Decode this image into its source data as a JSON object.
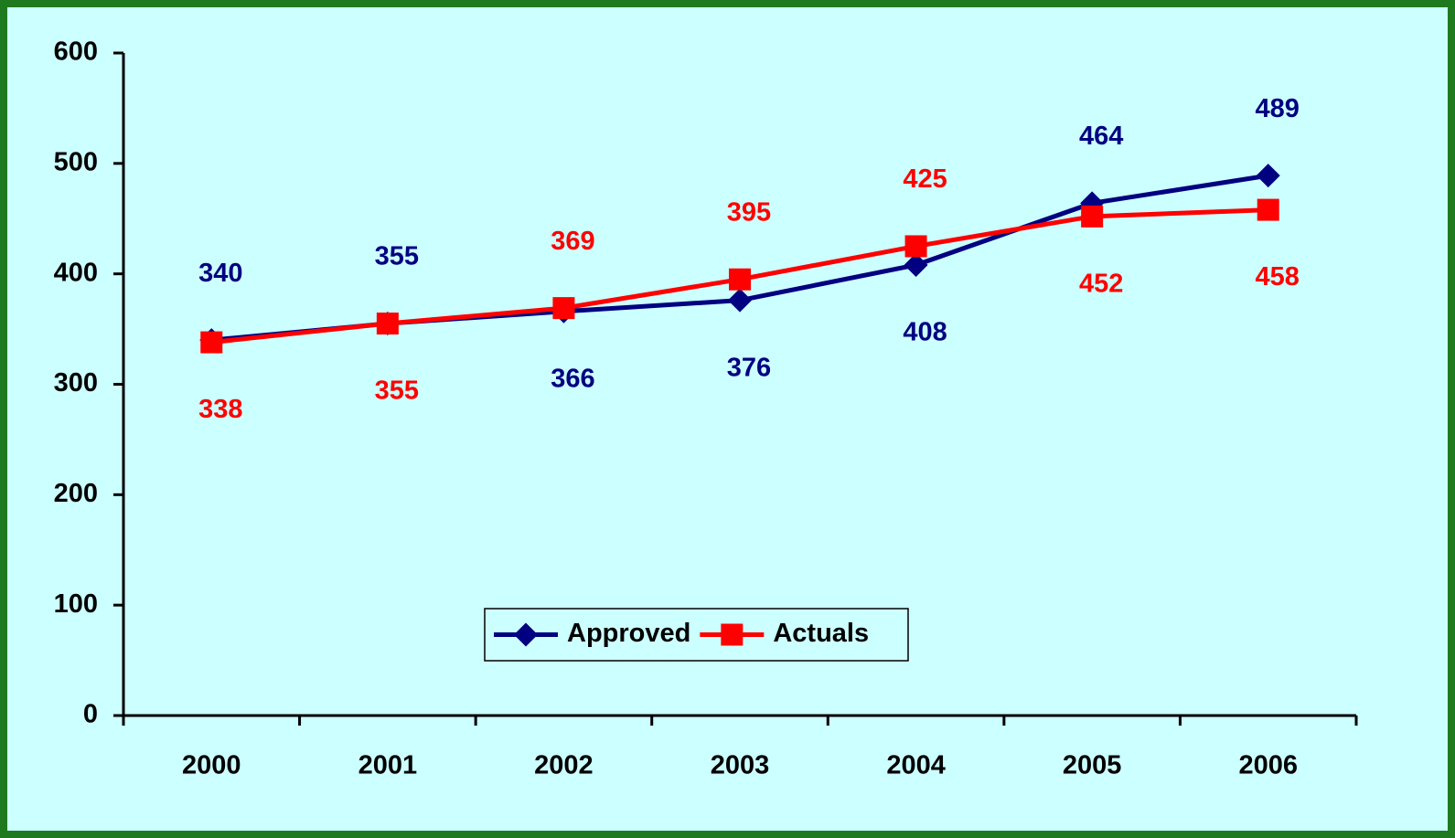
{
  "chart_data": {
    "type": "line",
    "categories": [
      "2000",
      "2001",
      "2002",
      "2003",
      "2004",
      "2005",
      "2006"
    ],
    "series": [
      {
        "name": "Approved",
        "color": "#000080",
        "marker": "diamond",
        "values": [
          340,
          355,
          366,
          376,
          408,
          464,
          489
        ]
      },
      {
        "name": "Actuals",
        "color": "#ff0000",
        "marker": "square",
        "values": [
          338,
          355,
          369,
          395,
          425,
          452,
          458
        ]
      }
    ],
    "ylim": [
      0,
      600
    ],
    "yticks": [
      0,
      100,
      200,
      300,
      400,
      500,
      600
    ],
    "grid": false,
    "legend": "bottom"
  }
}
